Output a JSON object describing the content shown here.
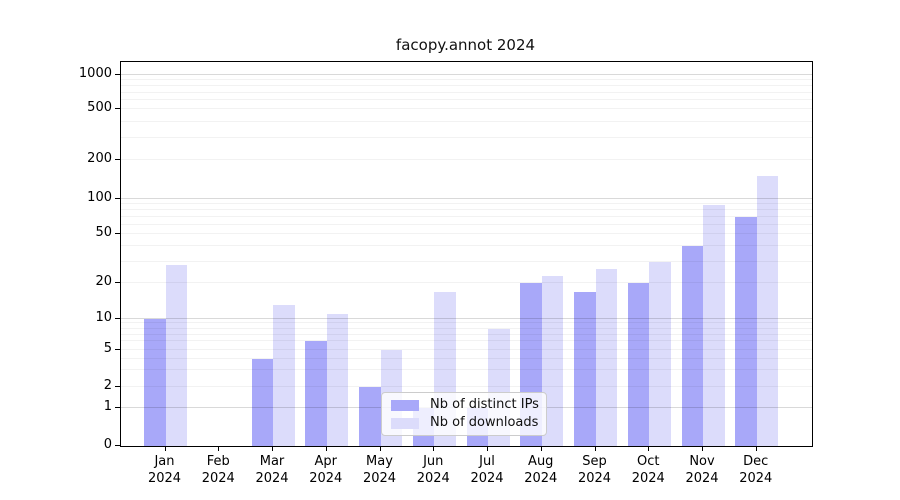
{
  "chart_data": {
    "type": "bar",
    "title": "facopy.annot 2024",
    "categories": [
      "Jan 2024",
      "Feb 2024",
      "Mar 2024",
      "Apr 2024",
      "May 2024",
      "Jun 2024",
      "Jul 2024",
      "Aug 2024",
      "Sep 2024",
      "Oct 2024",
      "Nov 2024",
      "Dec 2024"
    ],
    "series": [
      {
        "name": "Nb of distinct IPs",
        "color": "#a8a8f9",
        "values": [
          10,
          0,
          4,
          6,
          2,
          1,
          1,
          20,
          17,
          20,
          40,
          70
        ]
      },
      {
        "name": "Nb of downloads",
        "color": "#dcdcfb",
        "values": [
          28,
          0,
          13,
          11,
          5,
          17,
          8,
          23,
          26,
          30,
          88,
          150
        ]
      }
    ],
    "yscale": "symlog (linear 0-1, logarithmic above 1)",
    "yticks": [
      0,
      1,
      2,
      5,
      10,
      20,
      50,
      100,
      200,
      500,
      1000
    ],
    "ylim": [
      0,
      1300
    ],
    "xlabel": "",
    "ylabel": "",
    "grid": "horizontal, major at powers of 10 plus faint log minors",
    "legend_position": "inside, lower center"
  },
  "colors": {
    "distinct_ips_bar": "#a8a8f9",
    "downloads_bar": "#dcdcfb",
    "grid_major": "rgba(0,0,0,0.15)",
    "grid_minor": "rgba(0,0,0,0.05)",
    "axis": "#000000",
    "tick_text": "#000000",
    "legend_border": "#cccccc",
    "legend_background": "rgba(255,255,255,0.8)"
  }
}
